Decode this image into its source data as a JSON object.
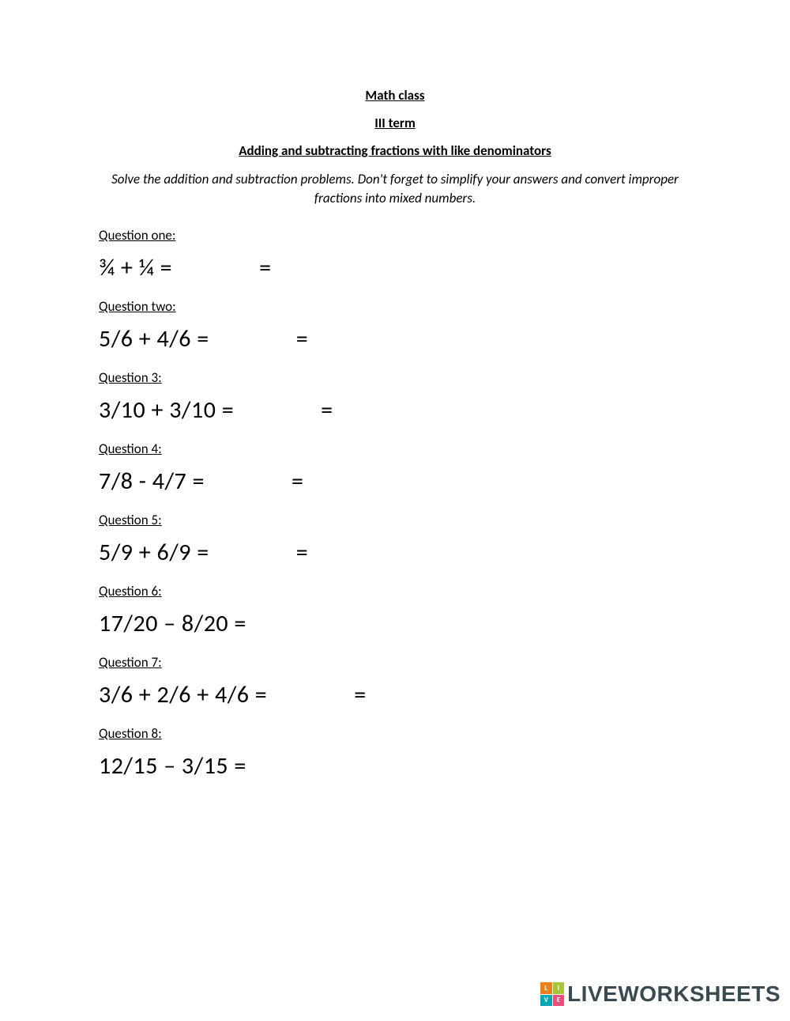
{
  "header": {
    "title": "Math class",
    "term": "III term",
    "topic": "Adding and subtracting fractions with like denominators"
  },
  "instructions": "Solve the addition and subtraction problems. Don't forget to simplify your answers and convert improper fractions into mixed numbers.",
  "questions": [
    {
      "label": "Question one:",
      "expression": "¾ + ¼ =",
      "extra_eq": true
    },
    {
      "label": "Question two:",
      "expression": "5/6 + 4/6 =",
      "extra_eq": true
    },
    {
      "label": "Question 3:",
      "expression": "3/10 + 3/10 =",
      "extra_eq": true
    },
    {
      "label": "Question 4:",
      "expression": "7/8 - 4/7 =",
      "extra_eq": true
    },
    {
      "label": "Question 5:",
      "expression": "5/9 + 6/9 =",
      "extra_eq": true
    },
    {
      "label": "Question 6:",
      "expression": "17/20 – 8/20 =",
      "extra_eq": false
    },
    {
      "label": "Question 7:",
      "expression": "3/6 + 2/6 + 4/6 =",
      "extra_eq": true
    },
    {
      "label": "Question 8:",
      "expression": "12/15 – 3/15 =",
      "extra_eq": false
    }
  ],
  "watermark": {
    "text": "LIVEWORKSHEETS",
    "badge": [
      "L",
      "I",
      "V",
      "E"
    ],
    "badge_colors": [
      "#ef7f1a",
      "#a7c539",
      "#00a7b5",
      "#e94f7a"
    ],
    "text_color": "#3a4a52"
  },
  "colors": {
    "background": "#ffffff",
    "text": "#000000"
  },
  "typography": {
    "body_font": "Calibri",
    "header_fontsize": 17,
    "label_fontsize": 17,
    "expression_fontsize": 30
  }
}
